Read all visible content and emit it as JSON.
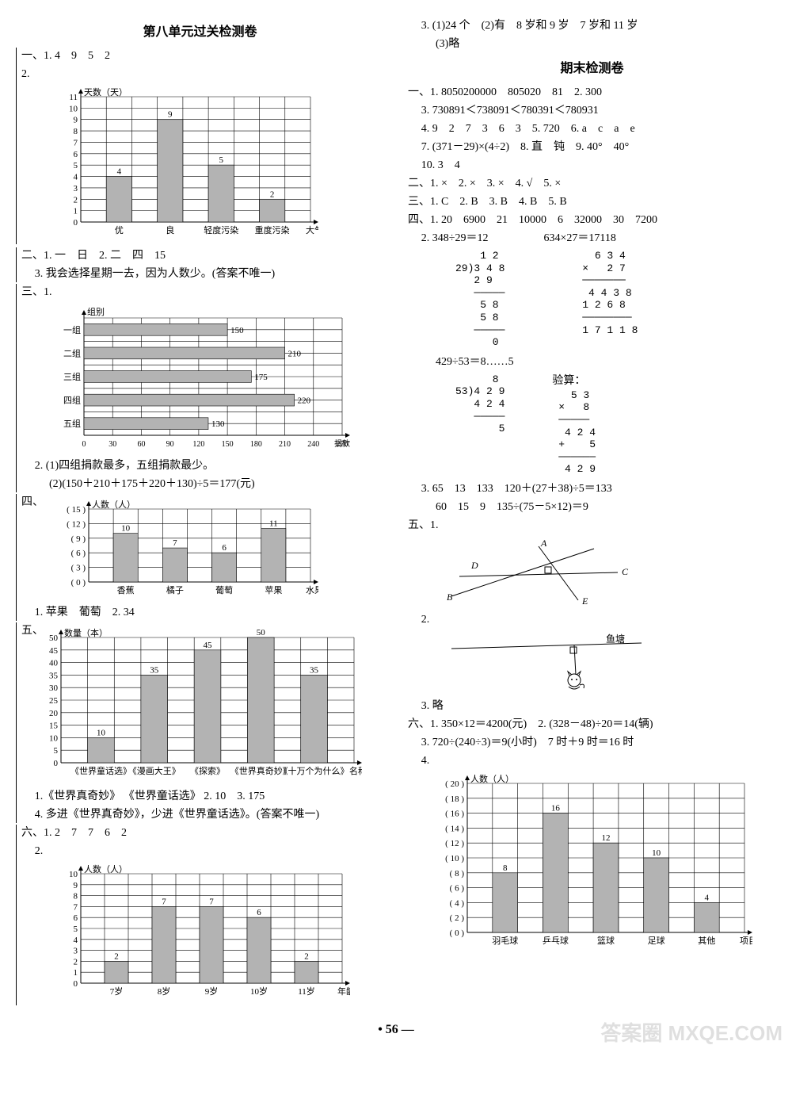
{
  "left": {
    "title": "第八单元过关检测卷",
    "s1_1": "一、1. 4　9　5　2",
    "s1_2": "2.",
    "chart1": {
      "type": "bar",
      "ylabel": "天数（天）",
      "xlabel": "大气状况",
      "categories": [
        "优",
        "良",
        "轻度污染",
        "重度污染"
      ],
      "values": [
        4,
        9,
        5,
        2
      ],
      "ymax": 11,
      "ytick_step": 1,
      "bar_color": "#b3b3b3",
      "grid_color": "#000000",
      "label_fontsize": 11
    },
    "s2_1": "二、1. 一　日　2. 二　四　15",
    "s2_3": "3. 我会选择星期一去，因为人数少。(答案不唯一)",
    "s3_1": "三、1.",
    "chart2": {
      "type": "hbar",
      "title": "组别",
      "xlabel": "捐款数(元)",
      "categories": [
        "一组",
        "二组",
        "三组",
        "四组",
        "五组"
      ],
      "values": [
        150,
        210,
        175,
        220,
        130
      ],
      "xmax": 270,
      "xtick_step": 30,
      "bar_color": "#b3b3b3",
      "grid_color": "#000000"
    },
    "s3_2a": "2. (1)四组捐款最多，五组捐款最少。",
    "s3_2b": "(2)(150＋210＋175＋220＋130)÷5＝177(元)",
    "s4_label": "四、",
    "chart3": {
      "type": "bar",
      "ylabel": "人数（人）",
      "xlabel": "水果",
      "categories": [
        "香蕉",
        "橘子",
        "葡萄",
        "苹果"
      ],
      "values": [
        10,
        7,
        6,
        11
      ],
      "ylabels": [
        "15",
        "12",
        "9",
        "6",
        "3",
        "0"
      ],
      "yvals": [
        15,
        12,
        9,
        6,
        3,
        0
      ],
      "bar_color": "#b3b3b3",
      "grid_color": "#000000"
    },
    "s4_1": "1. 苹果　葡萄　2. 34",
    "s5_label": "五、",
    "chart4": {
      "type": "bar",
      "ylabel": "数量（本）",
      "xlabel": "名称",
      "categories": [
        "《世界童话选》",
        "《漫画大王》",
        "《探索》",
        "《世界真奇妙》",
        "《十万个为什么》"
      ],
      "values": [
        10,
        35,
        45,
        50,
        35
      ],
      "ymax": 50,
      "ytick_step": 5,
      "bar_color": "#b3b3b3",
      "grid_color": "#000000"
    },
    "s5_1": "1.《世界真奇妙》 《世界童话选》 2. 10　3. 175",
    "s5_4": "4. 多进《世界真奇妙》，少进《世界童话选》。(答案不唯一)",
    "s6_1": "六、1. 2　7　7　6　2",
    "s6_2": "2.",
    "chart5": {
      "type": "bar",
      "ylabel": "人数（人）",
      "xlabel": "年龄",
      "categories": [
        "7岁",
        "8岁",
        "9岁",
        "10岁",
        "11岁"
      ],
      "values": [
        2,
        7,
        7,
        6,
        2
      ],
      "ymax": 10,
      "ytick_step": 1,
      "bar_color": "#b3b3b3",
      "grid_color": "#000000"
    }
  },
  "right": {
    "top3": "3. (1)24 个　(2)有　8 岁和 9 岁　7 岁和 11 岁",
    "top3b": "(3)略",
    "title": "期末检测卷",
    "s1_1": "一、1. 8050200000　805020　81　2. 300",
    "s1_3": "3. 730891＜738091＜780391＜780931",
    "s1_4": "4. 9　2　7　3　6　3　5. 720　6. a　c　a　e",
    "s1_7": "7. (371－29)×(4÷2)　8. 直　钝　9. 40°　40°",
    "s1_10": "10. 3　4",
    "s2": "二、1. ×　2. ×　3. ×　4. √　5. ×",
    "s3": "三、1. C　2. B　3. B　4. B　5. B",
    "s4_1": "四、1. 20　6900　21　10000　6　32000　30　7200",
    "s4_2": "2. 348÷29＝12　　　　　634×27＝17118",
    "div1": "    1 2\n29)3 4 8\n   2 9\n   ─────\n    5 8\n    5 8\n   ─────\n      0",
    "mul1": "   6 3 4\n ×   2 7\n ───────\n  4 4 3 8\n 1 2 6 8\n ────────\n 1 7 1 1 8",
    "s4_2b": "429÷53＝8……5",
    "div2": "      8\n53)4 2 9\n   4 2 4\n   ─────\n       5",
    "check_label": "验算：",
    "mul2": "   5 3\n ×   8\n ─────\n  4 2 4\n +    5\n ──────\n  4 2 9",
    "s4_3a": "3. 65　13　133　120＋(27＋38)÷5＝133",
    "s4_3b": "60　15　9　135÷(75－5×12)＝9",
    "s5_1": "五、1.",
    "geo_labels": {
      "A": "A",
      "B": "B",
      "C": "C",
      "D": "D",
      "E": "E"
    },
    "s5_2": "2.",
    "pond_label": "鱼塘",
    "s5_3": "3. 略",
    "s6_1": "六、1. 350×12＝4200(元)　2. (328－48)÷20＝14(辆)",
    "s6_3": "3. 720÷(240÷3)＝9(小时)　7 时＋9 时＝16 时",
    "s6_4": "4.",
    "chart6": {
      "type": "bar",
      "ylabel": "人数（人）",
      "xlabel": "项目",
      "categories": [
        "羽毛球",
        "乒乓球",
        "篮球",
        "足球",
        "其他"
      ],
      "values": [
        8,
        16,
        12,
        10,
        4
      ],
      "ymax": 20,
      "ytick_step": 2,
      "bar_color": "#b3b3b3",
      "grid_color": "#000000"
    }
  },
  "pagenum": "56",
  "watermark": "答案圈 MXQE.COM"
}
